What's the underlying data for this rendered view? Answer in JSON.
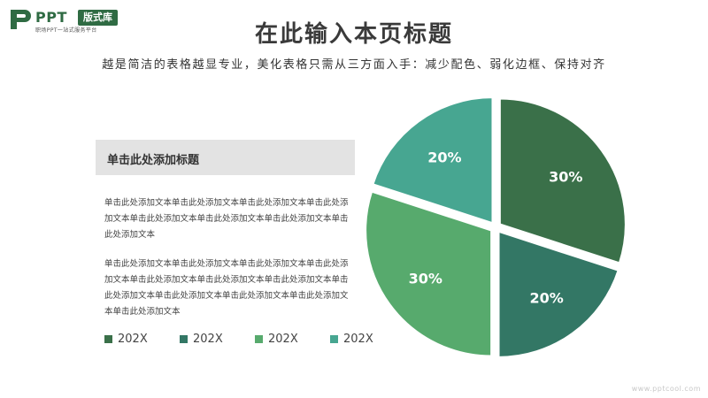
{
  "logo": {
    "brand": "PPT",
    "badge": "版式库",
    "tagline": "职场PPT一站式服务平台"
  },
  "page": {
    "title": "在此输入本页标题",
    "subtitle": "越是简洁的表格越显专业，美化表格只需从三方面入手：减少配色、弱化边框、保持对齐"
  },
  "text_box": {
    "title": "单击此处添加标题",
    "paragraph_1": "单击此处添加文本单击此处添加文本单击此处添加文本单击此处添加文本单击此处添加文本单击此处添加文本单击此处添加文本单击此处添加文本",
    "paragraph_2": "单击此处添加文本单击此处添加文本单击此处添加文本单击此处添加文本单击此处添加文本单击此处添加文本单击此处添加文本单击此处添加文本单击此处添加文本单击此处添加文本单击此处添加文本单击此处添加文本"
  },
  "watermark": "www.pptcool.com",
  "chart_data": {
    "type": "pie",
    "title": "",
    "categories": [
      "202X",
      "202X",
      "202X",
      "202X"
    ],
    "values": [
      30,
      20,
      30,
      20
    ],
    "labels": [
      "30%",
      "20%",
      "30%",
      "20%"
    ],
    "colors": [
      "#3a7049",
      "#337765",
      "#57aa6d",
      "#47a691"
    ],
    "legend_position": "bottom-left",
    "exploded": true
  }
}
